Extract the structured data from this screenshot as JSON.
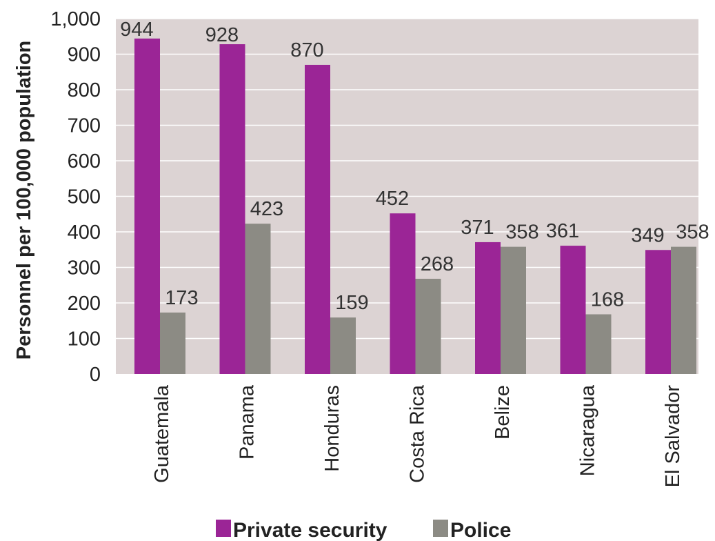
{
  "chart_data": {
    "type": "bar",
    "categories": [
      "Guatemala",
      "Panama",
      "Honduras",
      "Costa Rica",
      "Belize",
      "Nicaragua",
      "El Salvador"
    ],
    "series": [
      {
        "name": "Private security",
        "values": [
          944,
          928,
          870,
          452,
          371,
          361,
          349
        ],
        "color": "#9b2596"
      },
      {
        "name": "Police",
        "values": [
          173,
          423,
          159,
          268,
          358,
          168,
          358
        ],
        "color": "#8c8b84"
      }
    ],
    "ylabel": "Personnel per 100,000 population",
    "ylim": [
      0,
      1000
    ],
    "yticks": [
      "0",
      "100",
      "200",
      "300",
      "400",
      "500",
      "600",
      "700",
      "800",
      "900",
      "1,000"
    ],
    "ytick_values": [
      0,
      100,
      200,
      300,
      400,
      500,
      600,
      700,
      800,
      900,
      1000
    ],
    "data_labels": [
      [
        "944",
        "928",
        "870",
        "452",
        "371",
        "361",
        "349"
      ],
      [
        "173",
        "423",
        "159",
        "268",
        "358",
        "168",
        "358"
      ]
    ],
    "plot_background": "#dcd3d3",
    "grid": true,
    "legend": "bottom"
  }
}
